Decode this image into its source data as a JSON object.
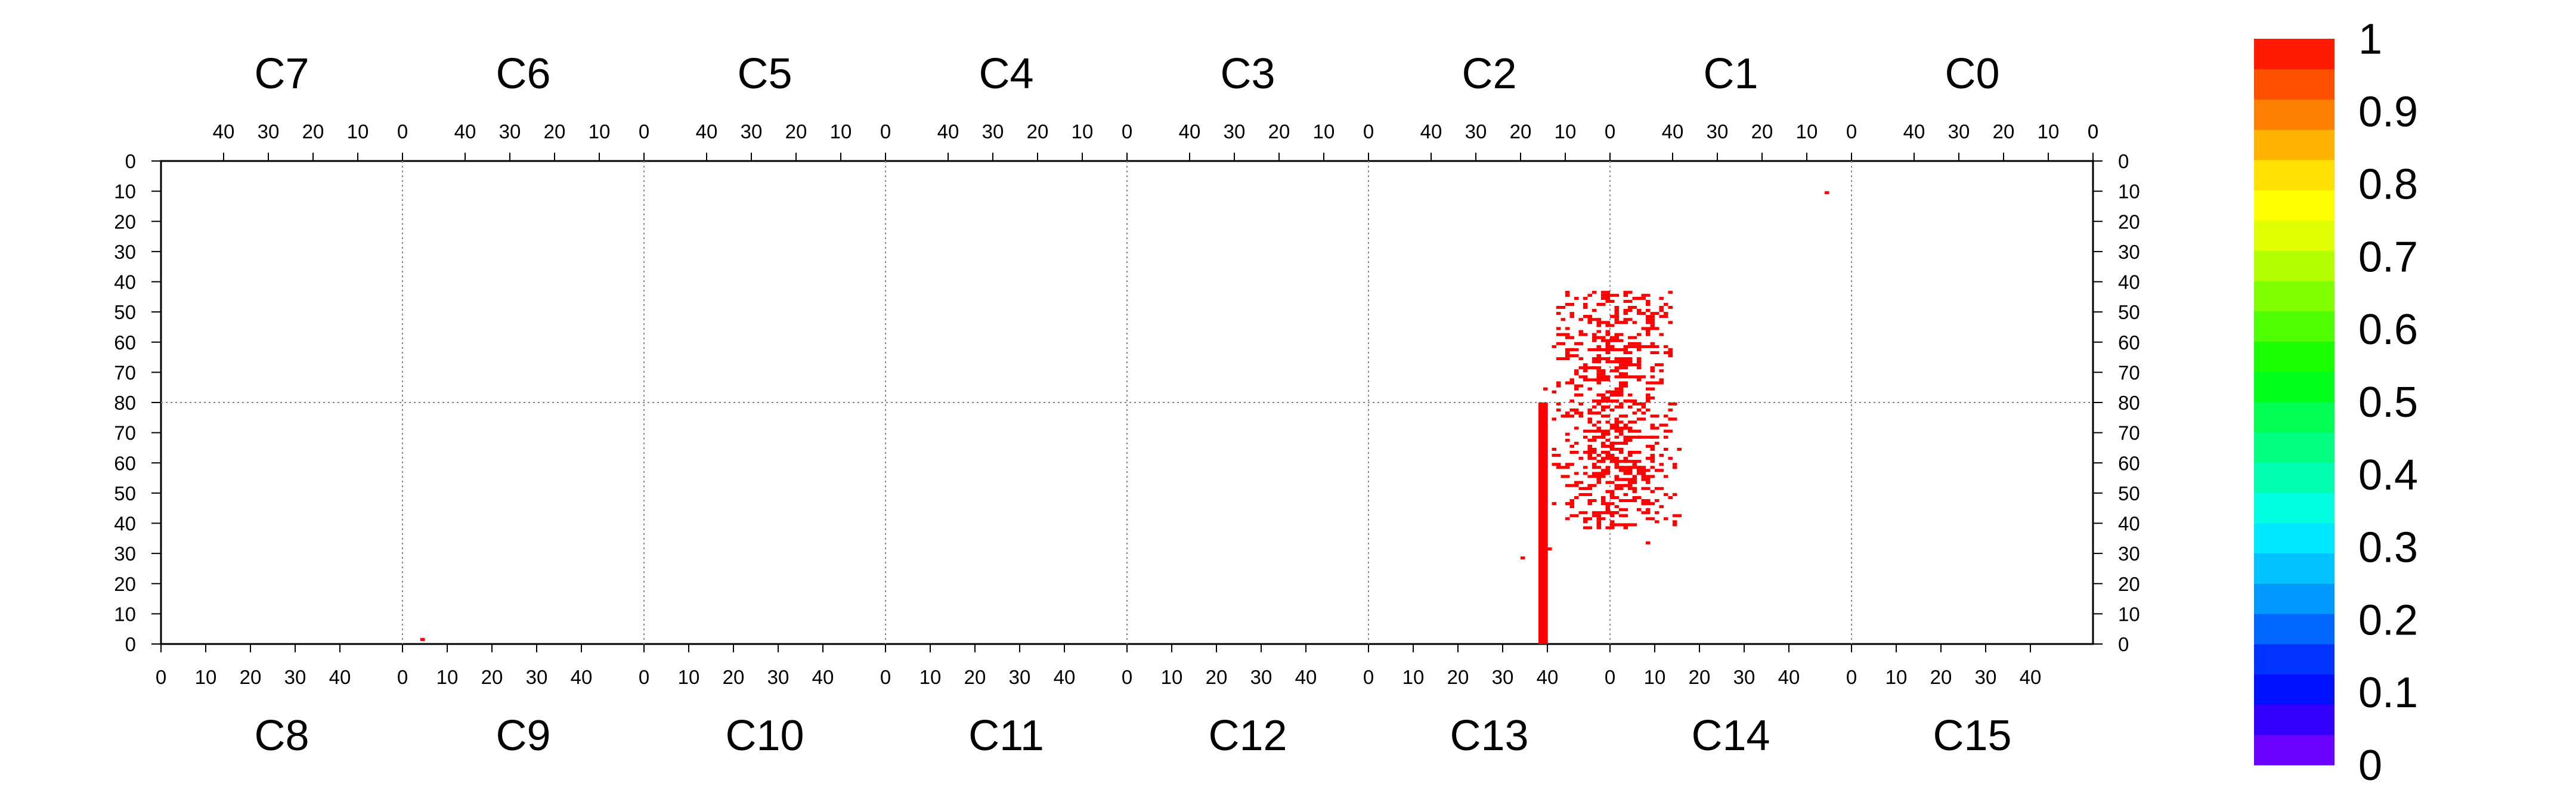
{
  "chart_data": {
    "type": "heatmap",
    "description_chips_top": [
      "C7",
      "C6",
      "C5",
      "C4",
      "C3",
      "C2",
      "C1",
      "C0"
    ],
    "chips_bottom": [
      "C8",
      "C9",
      "C10",
      "C11",
      "C12",
      "C13",
      "C14",
      "C15"
    ],
    "top_x_ticks": [
      "40",
      "30",
      "20",
      "10",
      "0"
    ],
    "bottom_x_ticks": [
      "0",
      "10",
      "20",
      "30",
      "40"
    ],
    "left_y_ticks": [
      "0",
      "10",
      "20",
      "30",
      "40",
      "50",
      "60",
      "70",
      "80",
      "70",
      "60",
      "50",
      "40",
      "30",
      "20",
      "10",
      "0"
    ],
    "right_y_ticks": [
      "0",
      "10",
      "20",
      "30",
      "40",
      "50",
      "60",
      "70",
      "80",
      "70",
      "60",
      "50",
      "40",
      "30",
      "20",
      "10",
      "0"
    ],
    "colorbar": {
      "ticks": [
        "0",
        "0.1",
        "0.2",
        "0.3",
        "0.4",
        "0.5",
        "0.6",
        "0.7",
        "0.8",
        "0.9",
        "1"
      ],
      "range": [
        0,
        1
      ],
      "colors": [
        "#6a00ff",
        "#3300ff",
        "#0011ff",
        "#0033ff",
        "#0066ff",
        "#0099ff",
        "#00c3ff",
        "#00e8ff",
        "#00ffe0",
        "#00ffb0",
        "#00ff80",
        "#00ff50",
        "#00ff1a",
        "#1aff00",
        "#4dff00",
        "#80ff00",
        "#b3ff00",
        "#e0ff00",
        "#ffff00",
        "#ffe000",
        "#ffb300",
        "#ff8000",
        "#ff5000",
        "#ff1a00"
      ]
    },
    "hit_color": "#ff0000",
    "hits": {
      "bar": {
        "chip": "C13",
        "col": 38,
        "row_from": 0,
        "row_to": 80
      },
      "single": [
        {
          "chip": "C9",
          "col": 4,
          "row": 1
        },
        {
          "chip": "C1",
          "col": 5,
          "row": 10
        }
      ],
      "cluster_seed": 11
    }
  }
}
